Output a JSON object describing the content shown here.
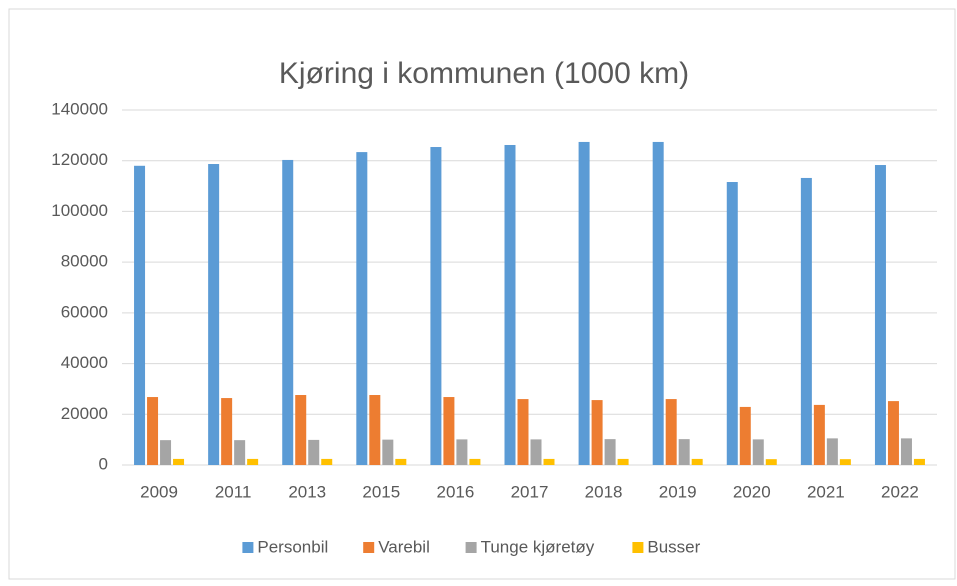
{
  "chart_data": {
    "type": "bar",
    "title": "Kjøring i kommunen (1000 km)",
    "categories": [
      "2009",
      "2011",
      "2013",
      "2015",
      "2016",
      "2017",
      "2018",
      "2019",
      "2020",
      "2021",
      "2022"
    ],
    "series": [
      {
        "name": "Personbil",
        "color": "#5b9bd5",
        "values": [
          118000,
          118700,
          120300,
          123400,
          125400,
          126200,
          127400,
          127400,
          111600,
          113200,
          118300
        ]
      },
      {
        "name": "Varebil",
        "color": "#ed7d31",
        "values": [
          26800,
          26400,
          27600,
          27600,
          26800,
          26000,
          25600,
          26000,
          22900,
          23700,
          25200
        ]
      },
      {
        "name": "Tunge kjøretøy",
        "color": "#a5a5a5",
        "values": [
          9800,
          9800,
          9900,
          10000,
          10100,
          10100,
          10200,
          10200,
          10100,
          10500,
          10500
        ]
      },
      {
        "name": "Busser",
        "color": "#ffc000",
        "values": [
          2400,
          2400,
          2400,
          2400,
          2400,
          2400,
          2400,
          2400,
          2300,
          2300,
          2400
        ]
      }
    ],
    "ylim": [
      0,
      140000
    ],
    "yticks": [
      0,
      20000,
      40000,
      60000,
      80000,
      100000,
      120000,
      140000
    ],
    "grid": true,
    "legend": "bottom"
  }
}
